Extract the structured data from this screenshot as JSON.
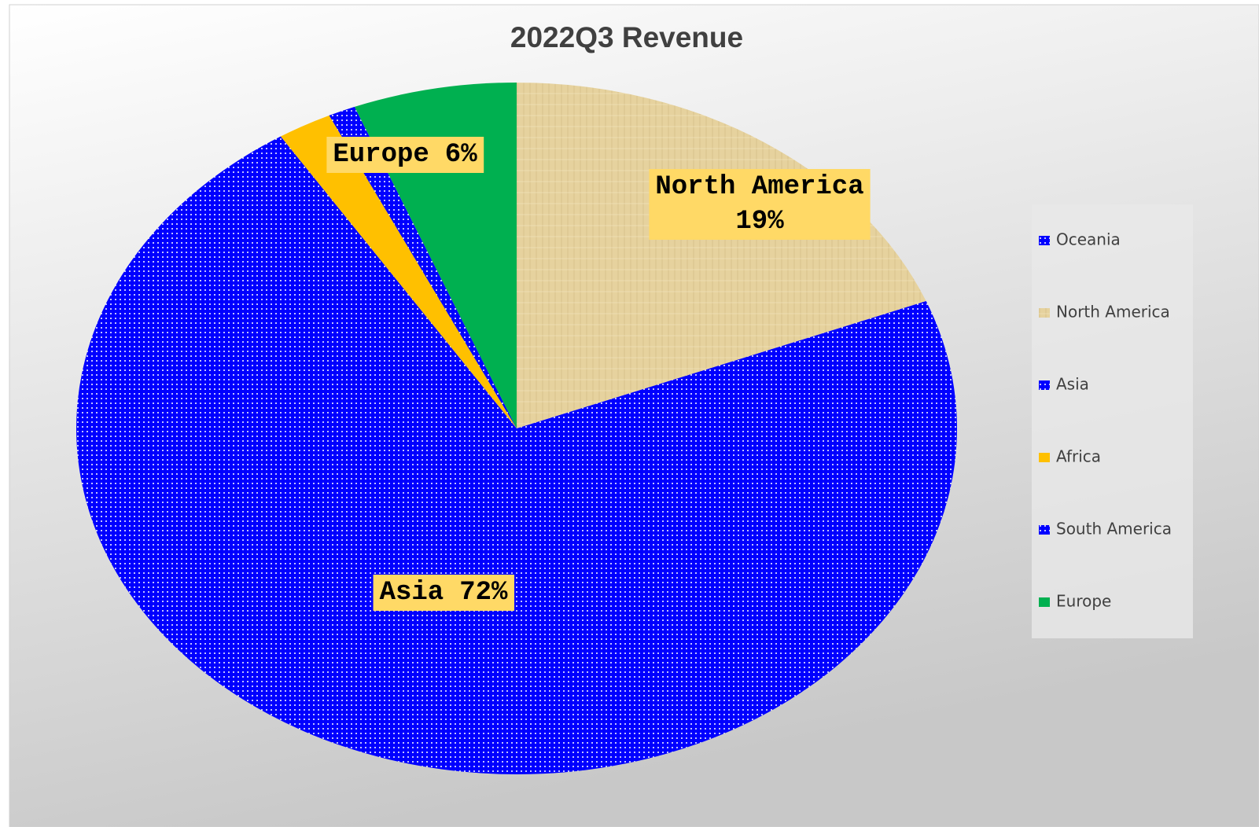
{
  "chart_data": {
    "type": "pie",
    "title": "2022Q3 Revenue",
    "categories": [
      "Oceania",
      "North America",
      "Asia",
      "Africa",
      "South America",
      "Europe"
    ],
    "values": [
      0,
      19,
      72,
      2,
      1,
      6
    ],
    "value_labels": [
      null,
      "19%",
      "72%",
      null,
      null,
      "6%"
    ],
    "colors": [
      "#0000ff",
      "#e6d29e",
      "#0000ff",
      "#ffc000",
      "#0000ff",
      "#00b050"
    ],
    "legend": "right"
  }
}
